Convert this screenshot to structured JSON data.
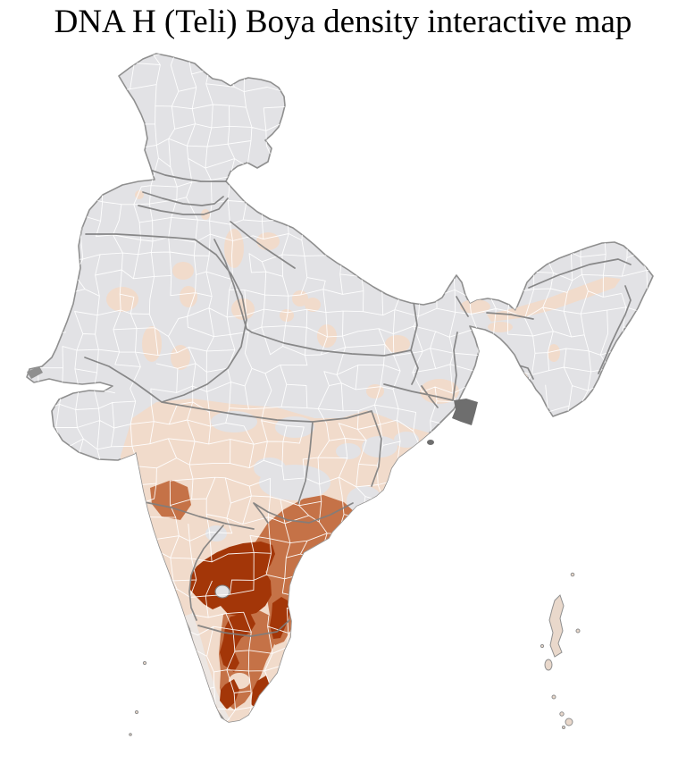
{
  "title": "DNA H (Teli) Boya density interactive map",
  "map": {
    "subject": "District-level choropleth map of India",
    "palette": {
      "background": "#ffffff",
      "no_data": "#e2e2e5",
      "very_low": "#ece6e2",
      "low": "#f1dbcb",
      "medium": "#c57247",
      "high": "#a33608",
      "district_border": "#ffffff",
      "state_border": "#7d7d7d",
      "outline": "#8f8f8f",
      "delta_marsh": "#6e6e6e",
      "island_fill": "#e9d8cb",
      "island_stroke": "#8f8f8f",
      "title_color": "#000000"
    },
    "density_levels": [
      {
        "level": "high",
        "color_key": "high",
        "areas": "Rayalaseema (Andhra Pradesh), eastern Karnataka, southern Telangana, Nellore coast, northern and southern Tamil Nadu pockets"
      },
      {
        "level": "medium",
        "color_key": "medium",
        "areas": "coastal Andhra Pradesh, Telangana, central Tamil Nadu, two western Maharashtra districts"
      },
      {
        "level": "low",
        "color_key": "low",
        "areas": "Maharashtra, Madhya Pradesh, Chhattisgarh, Odisha, Kerala, scattered northern plains and Assam valley districts"
      },
      {
        "level": "no_data",
        "color_key": "no_data",
        "areas": "Jammu & Kashmir, Punjab, Rajasthan, Gujarat, Uttar Pradesh, Bihar, West Bengal, Northeast hill states"
      }
    ],
    "islands": [
      "Lakshadweep",
      "Andaman & Nicobar"
    ]
  }
}
